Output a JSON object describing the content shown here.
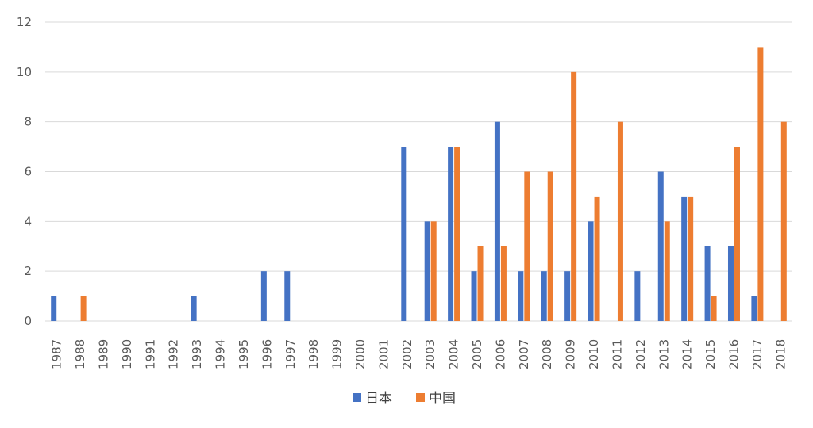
{
  "chart_data": {
    "type": "bar",
    "categories": [
      "1987",
      "1988",
      "1989",
      "1990",
      "1991",
      "1992",
      "1993",
      "1994",
      "1995",
      "1996",
      "1997",
      "1998",
      "1999",
      "2000",
      "2001",
      "2002",
      "2003",
      "2004",
      "2005",
      "2006",
      "2007",
      "2008",
      "2009",
      "2010",
      "2011",
      "2012",
      "2013",
      "2014",
      "2015",
      "2016",
      "2017",
      "2018"
    ],
    "series": [
      {
        "name": "日本",
        "color": "#4472c4",
        "values": [
          1,
          0,
          0,
          0,
          0,
          0,
          1,
          0,
          0,
          2,
          2,
          0,
          0,
          0,
          0,
          7,
          4,
          7,
          2,
          8,
          2,
          2,
          2,
          4,
          0,
          2,
          6,
          5,
          3,
          3,
          1,
          0
        ]
      },
      {
        "name": "中国",
        "color": "#ed7d31",
        "values": [
          0,
          1,
          0,
          0,
          0,
          0,
          0,
          0,
          0,
          0,
          0,
          0,
          0,
          0,
          0,
          0,
          4,
          7,
          3,
          3,
          6,
          6,
          10,
          5,
          8,
          0,
          4,
          5,
          1,
          7,
          11,
          8
        ]
      }
    ],
    "yticks": [
      "0",
      "2",
      "4",
      "6",
      "8",
      "10",
      "12"
    ],
    "ylim": [
      0,
      12
    ],
    "grid": true,
    "legend_position": "bottom"
  }
}
